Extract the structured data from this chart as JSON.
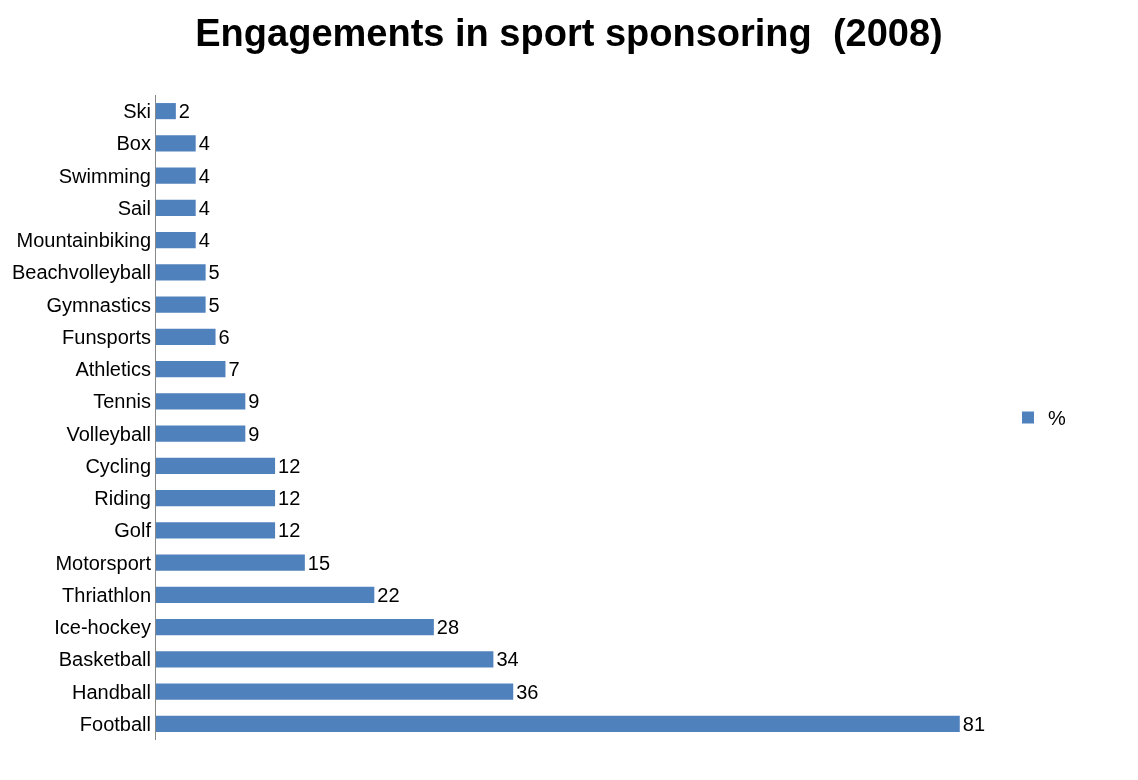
{
  "chart_data": {
    "type": "bar",
    "orientation": "horizontal",
    "title": "Engagements in sport sponsoring  (2008)",
    "categories": [
      "Ski",
      "Box",
      "Swimming",
      "Sail",
      "Mountainbiking",
      "Beachvolleyball",
      "Gymnastics",
      "Funsports",
      "Athletics",
      "Tennis",
      "Volleyball",
      "Cycling",
      "Riding",
      "Golf",
      "Motorsport",
      "Thriathlon",
      "Ice-hockey",
      "Basketball",
      "Handball",
      "Football"
    ],
    "series": [
      {
        "name": "%",
        "color": "#4f81bd",
        "values": [
          2,
          4,
          4,
          4,
          4,
          5,
          5,
          6,
          7,
          9,
          9,
          12,
          12,
          12,
          15,
          22,
          28,
          34,
          36,
          81
        ]
      }
    ],
    "data_labels": true,
    "legend": "right"
  }
}
